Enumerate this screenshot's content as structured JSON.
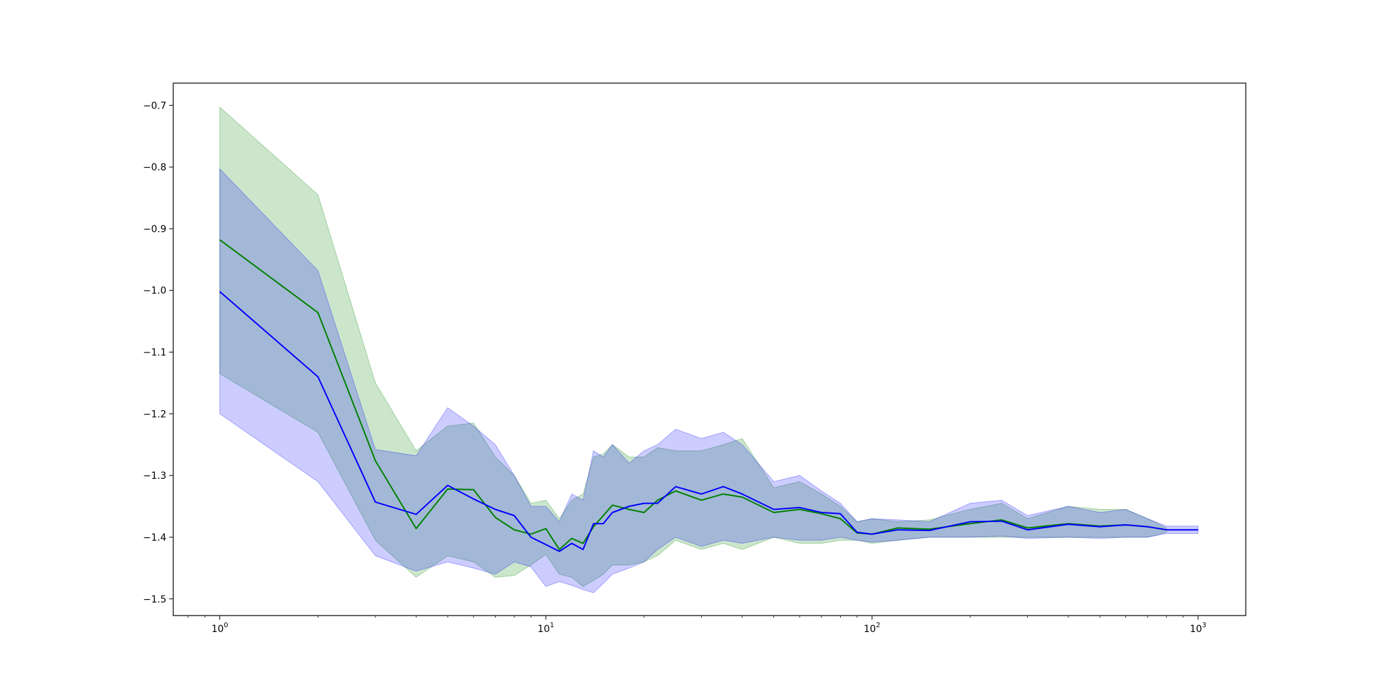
{
  "chart_data": {
    "type": "line",
    "title": "",
    "xlabel": "",
    "ylabel": "",
    "xscale": "log",
    "xlim": [
      0.72,
      1400
    ],
    "ylim": [
      -1.527,
      -0.664
    ],
    "grid": false,
    "x_ticks": [
      {
        "value": 1,
        "base": "10",
        "exp": "0"
      },
      {
        "value": 10,
        "base": "10",
        "exp": "1"
      },
      {
        "value": 100,
        "base": "10",
        "exp": "2"
      },
      {
        "value": 1000,
        "base": "10",
        "exp": "3"
      }
    ],
    "y_ticks": [
      {
        "value": -0.7,
        "label": "−0.7"
      },
      {
        "value": -0.8,
        "label": "−0.8"
      },
      {
        "value": -0.9,
        "label": "−0.9"
      },
      {
        "value": -1.0,
        "label": "−1.0"
      },
      {
        "value": -1.1,
        "label": "−1.1"
      },
      {
        "value": -1.2,
        "label": "−1.2"
      },
      {
        "value": -1.3,
        "label": "−1.3"
      },
      {
        "value": -1.4,
        "label": "−1.4"
      },
      {
        "value": -1.5,
        "label": "−1.5"
      }
    ],
    "series": [
      {
        "color": "#008000",
        "band_color": "#008000",
        "band_opacity": 0.2,
        "x": [
          1,
          2,
          3,
          4,
          5,
          6,
          7,
          8,
          9,
          10,
          11,
          12,
          13,
          14,
          15,
          16,
          18,
          20,
          22,
          25,
          30,
          35,
          40,
          50,
          60,
          70,
          80,
          90,
          100,
          120,
          150,
          200,
          250,
          300,
          400,
          500,
          600,
          700,
          800
        ],
        "y": [
          -0.918,
          -1.036,
          -1.276,
          -1.386,
          -1.322,
          -1.323,
          -1.368,
          -1.388,
          -1.395,
          -1.386,
          -1.42,
          -1.402,
          -1.41,
          -1.383,
          -1.365,
          -1.348,
          -1.355,
          -1.36,
          -1.34,
          -1.325,
          -1.34,
          -1.33,
          -1.335,
          -1.36,
          -1.355,
          -1.362,
          -1.37,
          -1.393,
          -1.395,
          -1.385,
          -1.387,
          -1.378,
          -1.372,
          -1.385,
          -1.378,
          -1.382,
          -1.38,
          -1.383,
          -1.388
        ],
        "upper": [
          -0.703,
          -0.845,
          -1.15,
          -1.26,
          -1.22,
          -1.215,
          -1.27,
          -1.3,
          -1.345,
          -1.34,
          -1.37,
          -1.34,
          -1.33,
          -1.27,
          -1.265,
          -1.25,
          -1.27,
          -1.27,
          -1.255,
          -1.26,
          -1.26,
          -1.25,
          -1.24,
          -1.32,
          -1.31,
          -1.33,
          -1.35,
          -1.375,
          -1.37,
          -1.375,
          -1.372,
          -1.355,
          -1.345,
          -1.37,
          -1.35,
          -1.355,
          -1.355,
          -1.37,
          -1.385
        ],
        "lower": [
          -1.135,
          -1.23,
          -1.405,
          -1.465,
          -1.43,
          -1.44,
          -1.465,
          -1.462,
          -1.445,
          -1.428,
          -1.46,
          -1.465,
          -1.48,
          -1.47,
          -1.46,
          -1.445,
          -1.445,
          -1.44,
          -1.43,
          -1.405,
          -1.42,
          -1.41,
          -1.42,
          -1.4,
          -1.41,
          -1.41,
          -1.405,
          -1.405,
          -1.41,
          -1.405,
          -1.4,
          -1.4,
          -1.4,
          -1.4,
          -1.4,
          -1.4,
          -1.4,
          -1.4,
          -1.392
        ]
      },
      {
        "color": "#0000ff",
        "band_color": "#0000ff",
        "band_opacity": 0.2,
        "x": [
          1,
          2,
          3,
          4,
          5,
          6,
          7,
          8,
          9,
          10,
          11,
          12,
          13,
          14,
          15,
          16,
          18,
          20,
          22,
          25,
          30,
          35,
          40,
          50,
          60,
          70,
          80,
          90,
          100,
          120,
          150,
          200,
          250,
          300,
          400,
          500,
          600,
          700,
          800,
          1000
        ],
        "y": [
          -1.002,
          -1.14,
          -1.343,
          -1.363,
          -1.316,
          -1.338,
          -1.355,
          -1.365,
          -1.4,
          -1.412,
          -1.423,
          -1.41,
          -1.42,
          -1.378,
          -1.378,
          -1.36,
          -1.35,
          -1.345,
          -1.345,
          -1.318,
          -1.33,
          -1.318,
          -1.33,
          -1.355,
          -1.352,
          -1.36,
          -1.362,
          -1.392,
          -1.395,
          -1.388,
          -1.389,
          -1.375,
          -1.374,
          -1.388,
          -1.379,
          -1.383,
          -1.38,
          -1.383,
          -1.388,
          -1.388
        ],
        "upper": [
          -0.803,
          -0.968,
          -1.258,
          -1.268,
          -1.19,
          -1.22,
          -1.25,
          -1.3,
          -1.35,
          -1.35,
          -1.375,
          -1.33,
          -1.34,
          -1.26,
          -1.27,
          -1.25,
          -1.28,
          -1.26,
          -1.25,
          -1.225,
          -1.24,
          -1.23,
          -1.25,
          -1.31,
          -1.3,
          -1.325,
          -1.345,
          -1.375,
          -1.37,
          -1.372,
          -1.375,
          -1.345,
          -1.34,
          -1.365,
          -1.35,
          -1.36,
          -1.355,
          -1.37,
          -1.382,
          -1.382
        ],
        "lower": [
          -1.2,
          -1.31,
          -1.43,
          -1.455,
          -1.44,
          -1.45,
          -1.46,
          -1.44,
          -1.448,
          -1.48,
          -1.472,
          -1.478,
          -1.485,
          -1.49,
          -1.475,
          -1.46,
          -1.45,
          -1.44,
          -1.42,
          -1.4,
          -1.415,
          -1.405,
          -1.41,
          -1.4,
          -1.405,
          -1.405,
          -1.4,
          -1.405,
          -1.408,
          -1.405,
          -1.4,
          -1.4,
          -1.398,
          -1.402,
          -1.4,
          -1.402,
          -1.4,
          -1.4,
          -1.394,
          -1.394
        ]
      }
    ]
  }
}
